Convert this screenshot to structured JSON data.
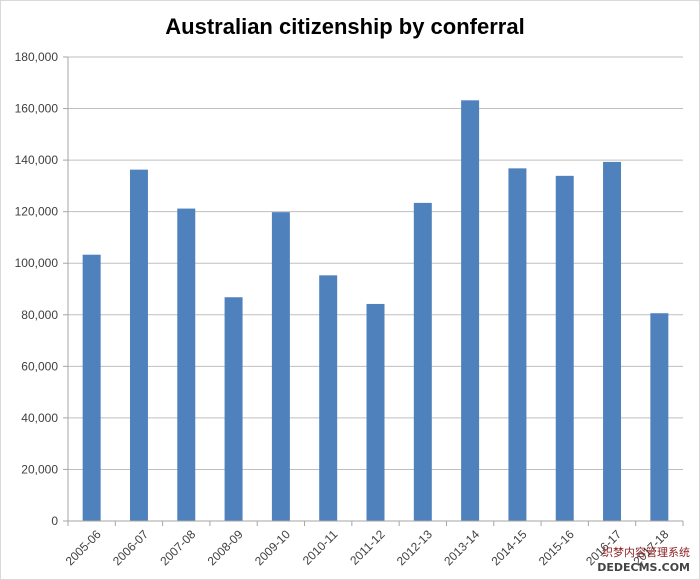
{
  "chart_data": {
    "type": "bar",
    "title": "Australian citizenship by conferral",
    "xlabel": "",
    "ylabel": "",
    "categories": [
      "2005-06",
      "2006-07",
      "2007-08",
      "2008-09",
      "2009-10",
      "2010-11",
      "2011-12",
      "2012-13",
      "2013-14",
      "2014-15",
      "2015-16",
      "2016-17",
      "2017-18"
    ],
    "values": [
      103300,
      136300,
      121200,
      86800,
      119800,
      95300,
      84200,
      123400,
      163200,
      136800,
      133900,
      139300,
      80600
    ],
    "ylim": [
      0,
      180000
    ],
    "yticks": [
      "0",
      "20,000",
      "40,000",
      "60,000",
      "80,000",
      "100,000",
      "120,000",
      "140,000",
      "160,000",
      "180,000"
    ],
    "grid": true,
    "legend": "none",
    "bar_color": "#4f81bd",
    "grid_color": "#bfbfbf",
    "axis_color": "#a6a6a6"
  },
  "watermark": {
    "line1": "织梦内容管理系统",
    "line2": "DEDECMS.COM"
  }
}
